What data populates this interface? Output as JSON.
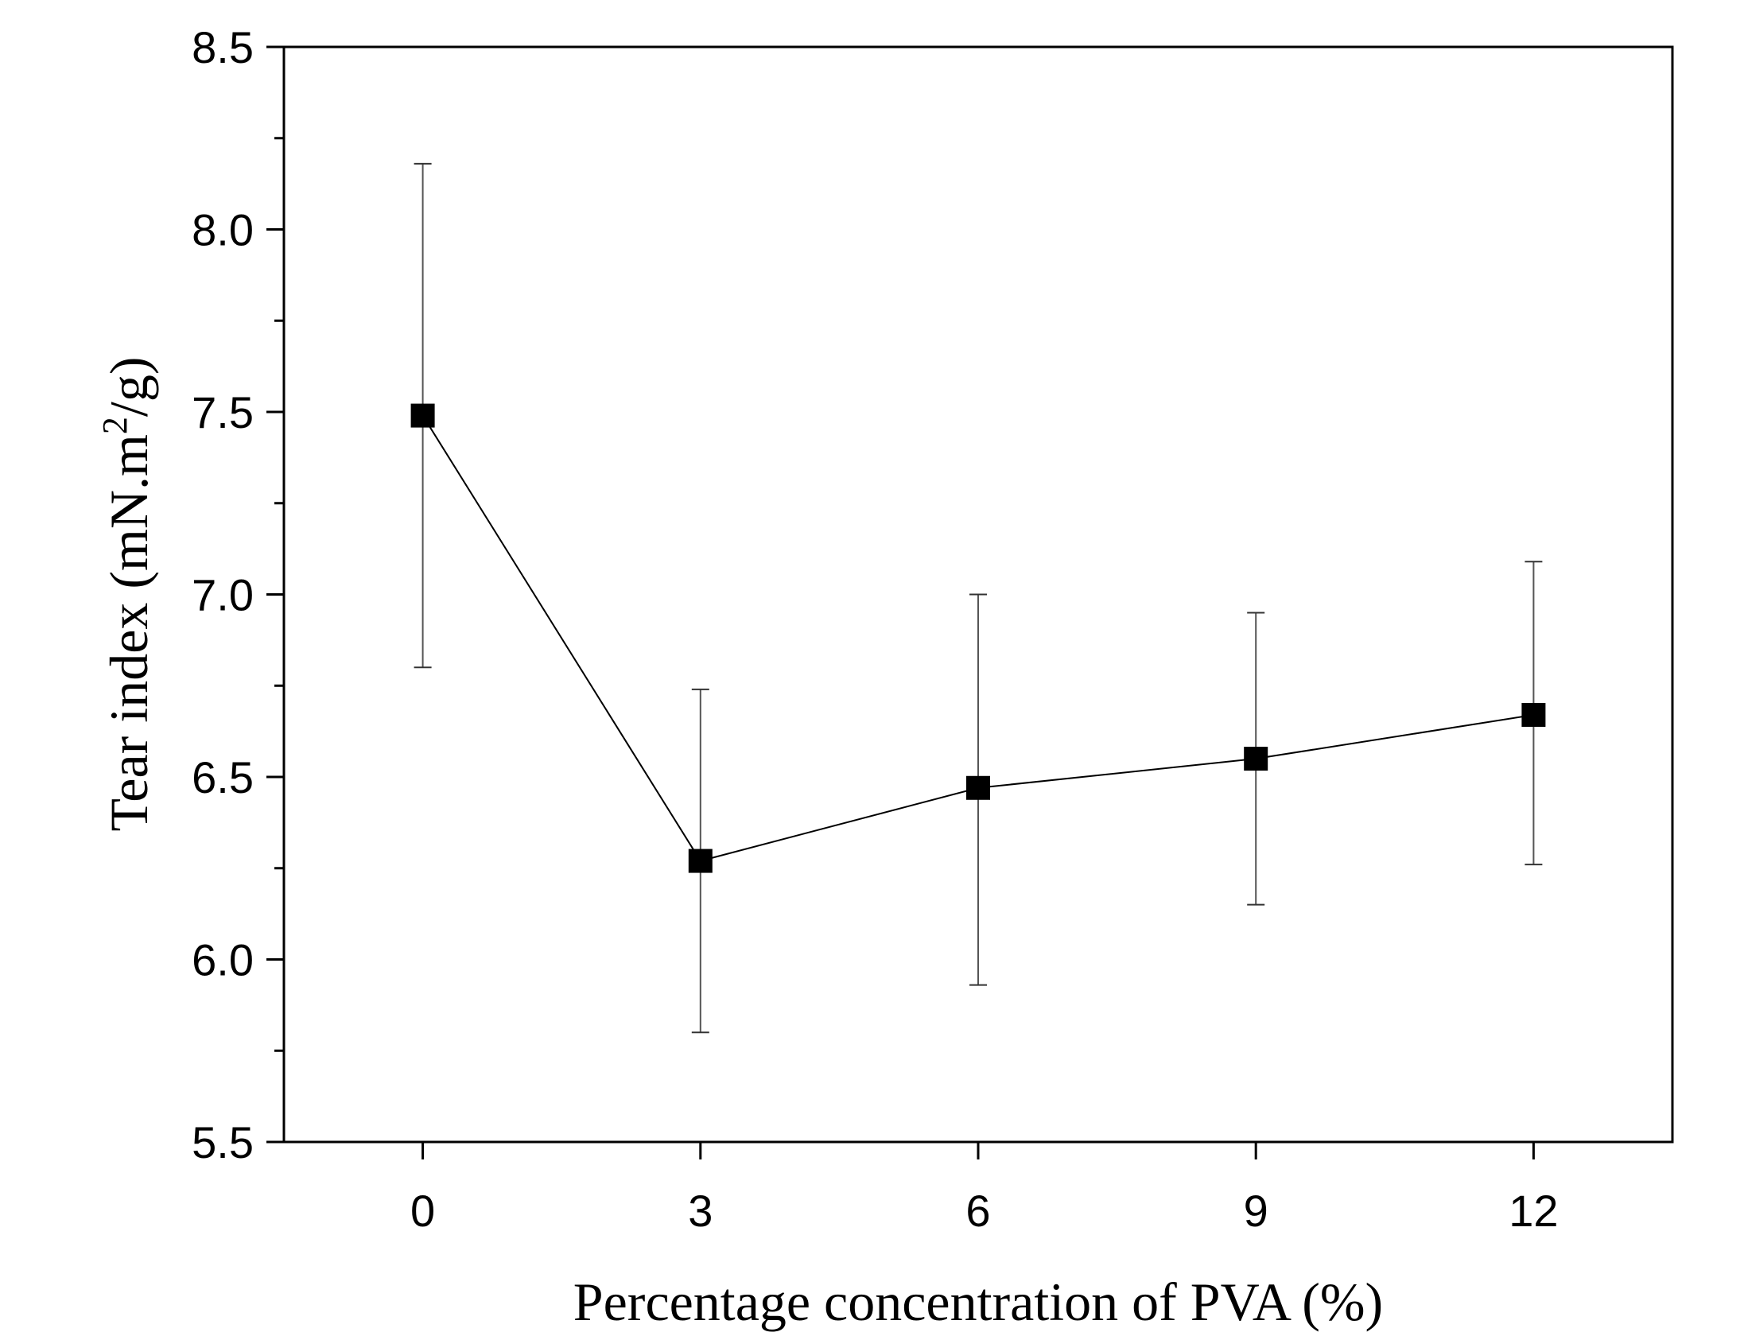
{
  "chart_data": {
    "type": "line",
    "title": "",
    "xlabel": "Percentage concentration of PVA (%)",
    "ylabel": {
      "main": "Tear index (mN.m",
      "superscript": "2",
      "tail": "/g)"
    },
    "xlim": [
      -1.5,
      13.5
    ],
    "ylim": [
      5.5,
      8.5
    ],
    "x_ticks": [
      0,
      3,
      6,
      9,
      12
    ],
    "x_tick_labels": [
      "0",
      "3",
      "6",
      "9",
      "12"
    ],
    "y_ticks": [
      5.5,
      6.0,
      6.5,
      7.0,
      7.5,
      8.0,
      8.5
    ],
    "y_tick_labels": [
      "5.5",
      "6.0",
      "6.5",
      "7.0",
      "7.5",
      "8.0",
      "8.5"
    ],
    "y_minor_ticks": [
      5.75,
      6.25,
      6.75,
      7.25,
      7.75,
      8.25
    ],
    "grid": false,
    "legend": "none",
    "series": [
      {
        "name": "Tear index",
        "marker": "square",
        "color": "#000000",
        "x": [
          0,
          3,
          6,
          9,
          12
        ],
        "values": [
          7.49,
          6.27,
          6.47,
          6.55,
          6.67
        ],
        "error_lower": [
          6.8,
          5.8,
          5.93,
          6.15,
          6.26
        ],
        "error_upper": [
          8.18,
          6.74,
          7.0,
          6.95,
          7.09
        ]
      }
    ]
  }
}
